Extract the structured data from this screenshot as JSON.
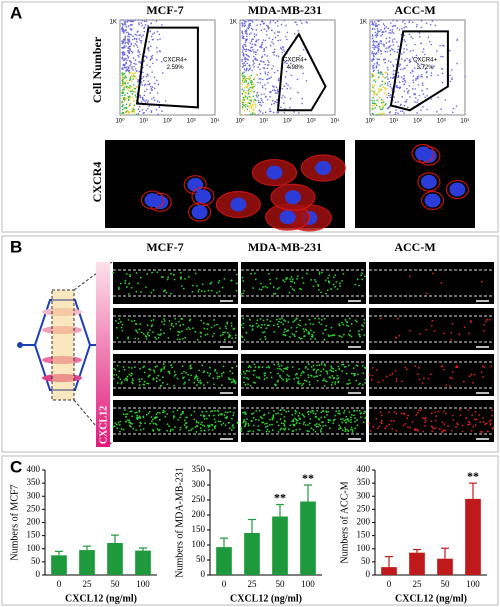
{
  "figure": {
    "panel_labels": [
      "A",
      "B",
      "C"
    ],
    "cell_lines": [
      "MCF-7",
      "MDA-MB-231",
      "ACC-M"
    ],
    "flow": {
      "y_label": "Cell Number",
      "y_tick": "1K",
      "x_ticks": [
        "10⁰",
        "10¹",
        "10²",
        "10³",
        "10⁴"
      ],
      "gates": [
        {
          "name": "CXCR4+",
          "percent": "2.59%"
        },
        {
          "name": "CXCR4+",
          "percent": "4.98%"
        },
        {
          "name": "CXCR4+",
          "percent": "3.72%"
        }
      ]
    },
    "stain_label": "CXCR4",
    "gradient_label": "CXCL12"
  },
  "chart_data": [
    {
      "type": "bar",
      "categories": [
        "0",
        "25",
        "50",
        "100"
      ],
      "values": [
        75,
        95,
        122,
        93
      ],
      "errors": [
        15,
        15,
        30,
        10
      ],
      "annotations": [
        null,
        null,
        null,
        null
      ],
      "color": "#1e9a3c",
      "ylabel": "Numbers of MCF7",
      "xlabel": "CXCL12 (ng/ml)",
      "ylim": [
        0,
        400
      ],
      "yticks": [
        0,
        50,
        100,
        150,
        200,
        250,
        300,
        350,
        400
      ]
    },
    {
      "type": "bar",
      "categories": [
        "0",
        "25",
        "50",
        "100"
      ],
      "values": [
        93,
        140,
        195,
        245
      ],
      "errors": [
        30,
        45,
        40,
        55
      ],
      "annotations": [
        null,
        null,
        "**",
        "**"
      ],
      "color": "#1e9a3c",
      "ylabel": "Numbers of MDA-MB-231",
      "xlabel": "CXCL12 (ng/ml)",
      "ylim": [
        0,
        350
      ],
      "yticks": [
        0,
        50,
        100,
        150,
        200,
        250,
        300,
        350
      ]
    },
    {
      "type": "bar",
      "categories": [
        "0",
        "25",
        "50",
        "100"
      ],
      "values": [
        30,
        85,
        62,
        290
      ],
      "errors": [
        40,
        12,
        40,
        60
      ],
      "annotations": [
        null,
        null,
        null,
        "**"
      ],
      "color": "#c0191c",
      "ylabel": "Numbers of ACC-M",
      "xlabel": "CXCL12 (ng/ml)",
      "ylim": [
        0,
        400
      ],
      "yticks": [
        0,
        50,
        100,
        150,
        200,
        250,
        300,
        350,
        400
      ]
    }
  ]
}
